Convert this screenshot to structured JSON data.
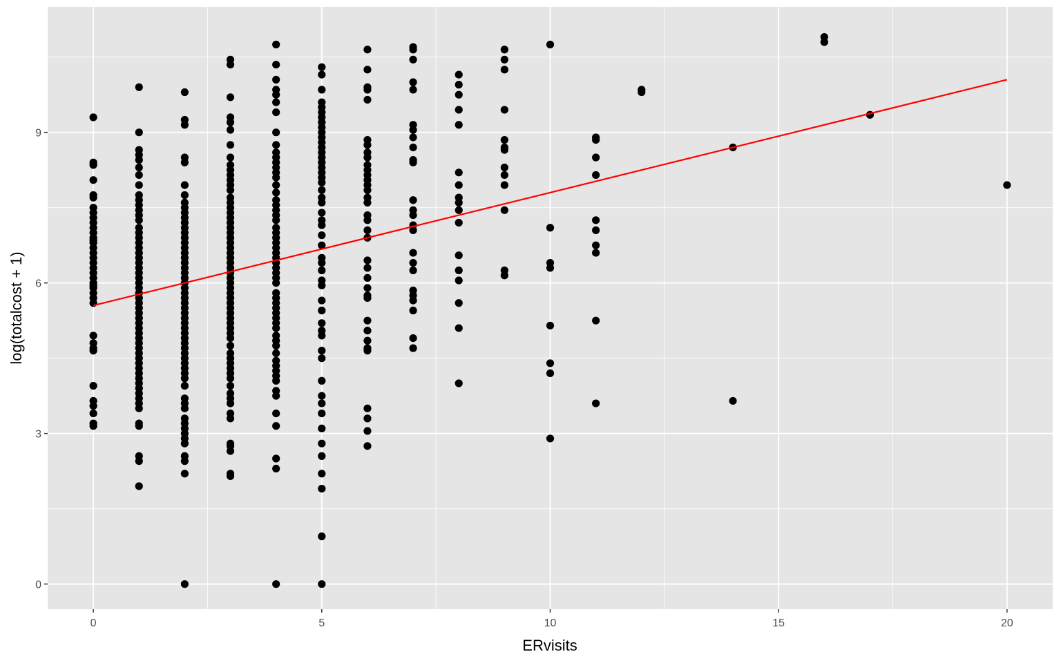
{
  "chart_data": {
    "type": "scatter",
    "title": "",
    "xlabel": "ERvisits",
    "ylabel": "log(totalcost + 1)",
    "xlim": [
      -1,
      21
    ],
    "ylim": [
      -0.5,
      11.5
    ],
    "x_ticks": [
      0,
      5,
      10,
      15,
      20
    ],
    "x_tick_labels": [
      "0",
      "5",
      "10",
      "15",
      "20"
    ],
    "y_ticks": [
      0,
      3,
      6,
      9
    ],
    "y_tick_labels": [
      "0",
      "3",
      "6",
      "9"
    ],
    "grid": true,
    "legend": "none",
    "colors": {
      "panel": "#e5e5e5",
      "grid": "#ffffff",
      "points": "#000000",
      "fit_line": "#ff0000"
    },
    "series": [
      {
        "values": [
          {
            "x": 0,
            "ys": [
              9.3,
              8.4,
              8.35,
              8.05,
              7.75,
              7.7,
              7.5,
              7.4,
              7.3,
              7.2,
              7.1,
              7.0,
              6.9,
              6.85,
              6.8,
              6.7,
              6.6,
              6.5,
              6.4,
              6.3,
              6.2,
              6.1,
              6.0,
              5.95,
              5.9,
              5.8,
              5.7,
              5.6,
              4.95,
              4.8,
              4.7,
              4.65,
              3.95,
              3.65,
              3.55,
              3.4,
              3.2,
              3.15
            ]
          },
          {
            "x": 1,
            "ys": [
              9.9,
              9.0,
              8.65,
              8.55,
              8.45,
              8.3,
              8.15,
              7.95,
              7.75,
              7.65,
              7.55,
              7.45,
              7.35,
              7.25,
              7.1,
              7.0,
              6.9,
              6.8,
              6.7,
              6.6,
              6.5,
              6.4,
              6.3,
              6.2,
              6.1,
              6.0,
              5.9,
              5.8,
              5.7,
              5.6,
              5.5,
              5.4,
              5.3,
              5.2,
              5.1,
              5.0,
              4.9,
              4.8,
              4.7,
              4.6,
              4.5,
              4.4,
              4.3,
              4.2,
              4.1,
              4.0,
              3.9,
              3.8,
              3.7,
              3.6,
              3.5,
              3.2,
              3.15,
              2.55,
              2.45,
              1.95
            ]
          },
          {
            "x": 2,
            "ys": [
              9.8,
              9.25,
              9.15,
              8.5,
              8.4,
              7.95,
              7.75,
              7.6,
              7.5,
              7.4,
              7.3,
              7.2,
              7.1,
              7.0,
              6.9,
              6.8,
              6.7,
              6.6,
              6.5,
              6.4,
              6.3,
              6.2,
              6.1,
              6.0,
              5.9,
              5.8,
              5.7,
              5.6,
              5.5,
              5.4,
              5.3,
              5.2,
              5.1,
              5.0,
              4.9,
              4.8,
              4.7,
              4.6,
              4.5,
              4.4,
              4.3,
              4.2,
              4.1,
              3.95,
              3.7,
              3.6,
              3.5,
              3.3,
              3.2,
              3.1,
              3.0,
              2.9,
              2.8,
              2.55,
              2.45,
              2.2,
              0.0
            ]
          },
          {
            "x": 3,
            "ys": [
              10.45,
              10.35,
              9.7,
              9.3,
              9.2,
              9.05,
              8.75,
              8.5,
              8.35,
              8.25,
              8.15,
              8.05,
              7.95,
              7.85,
              7.7,
              7.6,
              7.5,
              7.4,
              7.3,
              7.2,
              7.1,
              7.0,
              6.9,
              6.8,
              6.7,
              6.6,
              6.5,
              6.4,
              6.3,
              6.2,
              6.1,
              6.0,
              5.9,
              5.8,
              5.7,
              5.6,
              5.5,
              5.4,
              5.3,
              5.2,
              5.1,
              5.0,
              4.9,
              4.75,
              4.6,
              4.5,
              4.4,
              4.3,
              4.2,
              4.1,
              3.95,
              3.8,
              3.7,
              3.6,
              3.4,
              3.3,
              2.8,
              2.75,
              2.65,
              2.2,
              2.15
            ]
          },
          {
            "x": 4,
            "ys": [
              10.75,
              10.35,
              10.05,
              9.85,
              9.75,
              9.6,
              9.4,
              9.0,
              8.75,
              8.6,
              8.5,
              8.4,
              8.3,
              8.2,
              8.1,
              7.95,
              7.8,
              7.65,
              7.55,
              7.45,
              7.35,
              7.25,
              7.1,
              7.0,
              6.9,
              6.8,
              6.7,
              6.6,
              6.5,
              6.4,
              6.3,
              6.2,
              6.1,
              6.0,
              5.8,
              5.7,
              5.6,
              5.5,
              5.4,
              5.3,
              5.2,
              5.1,
              4.95,
              4.85,
              4.75,
              4.6,
              4.45,
              4.35,
              4.25,
              4.15,
              4.05,
              3.85,
              3.75,
              3.4,
              3.15,
              2.5,
              2.3,
              0.0
            ]
          },
          {
            "x": 5,
            "ys": [
              10.3,
              10.15,
              9.85,
              9.6,
              9.5,
              9.4,
              9.3,
              9.2,
              9.1,
              9.0,
              8.9,
              8.8,
              8.7,
              8.6,
              8.5,
              8.4,
              8.3,
              8.2,
              8.1,
              8.0,
              7.85,
              7.7,
              7.6,
              7.4,
              7.25,
              7.15,
              6.95,
              6.75,
              6.5,
              6.4,
              6.25,
              6.05,
              5.95,
              5.65,
              5.45,
              5.2,
              5.05,
              4.95,
              4.65,
              4.5,
              4.05,
              3.75,
              3.6,
              3.4,
              3.1,
              2.8,
              2.55,
              2.2,
              1.9,
              0.95,
              0.0
            ]
          },
          {
            "x": 6,
            "ys": [
              10.65,
              10.25,
              9.9,
              9.85,
              9.65,
              8.85,
              8.75,
              8.6,
              8.5,
              8.35,
              8.25,
              8.15,
              8.05,
              7.95,
              7.85,
              7.7,
              7.6,
              7.35,
              7.25,
              7.05,
              6.9,
              6.45,
              6.3,
              6.1,
              5.9,
              5.75,
              5.7,
              5.25,
              5.05,
              4.85,
              4.7,
              4.65,
              3.5,
              3.3,
              3.05,
              2.75
            ]
          },
          {
            "x": 7,
            "ys": [
              10.7,
              10.65,
              10.45,
              10.0,
              9.85,
              9.15,
              9.05,
              8.9,
              8.7,
              8.45,
              8.4,
              7.65,
              7.45,
              7.35,
              7.15,
              7.05,
              6.6,
              6.4,
              6.25,
              5.85,
              5.75,
              5.65,
              5.45,
              4.9,
              4.7
            ]
          },
          {
            "x": 8,
            "ys": [
              10.15,
              9.95,
              9.75,
              9.45,
              9.15,
              8.2,
              7.95,
              7.7,
              7.6,
              7.45,
              7.2,
              6.55,
              6.25,
              6.05,
              5.6,
              5.1,
              4.0
            ]
          },
          {
            "x": 9,
            "ys": [
              10.65,
              10.45,
              10.25,
              9.45,
              8.85,
              8.7,
              8.65,
              8.3,
              8.15,
              7.95,
              7.45,
              6.25,
              6.15
            ]
          },
          {
            "x": 10,
            "ys": [
              10.75,
              7.1,
              6.4,
              6.3,
              5.15,
              4.4,
              4.2,
              2.9
            ]
          },
          {
            "x": 11,
            "ys": [
              8.9,
              8.85,
              8.5,
              8.15,
              7.25,
              7.05,
              6.75,
              6.6,
              5.25,
              3.6
            ]
          },
          {
            "x": 12,
            "ys": [
              9.85,
              9.8
            ]
          },
          {
            "x": 14,
            "ys": [
              8.7,
              3.65
            ]
          },
          {
            "x": 16,
            "ys": [
              10.9,
              10.8
            ]
          },
          {
            "x": 17,
            "ys": [
              9.35
            ]
          },
          {
            "x": 20,
            "ys": [
              7.95
            ]
          }
        ]
      }
    ],
    "fit_line": {
      "x": [
        0,
        20
      ],
      "y": [
        5.55,
        10.05
      ]
    }
  }
}
